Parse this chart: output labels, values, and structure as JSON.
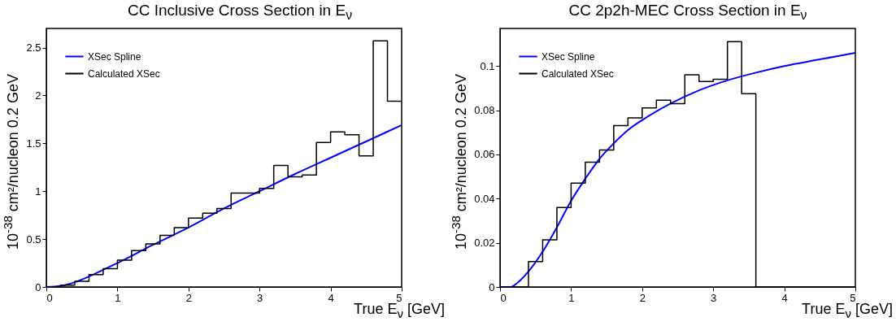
{
  "chart_data": [
    {
      "type": "histogram",
      "title": "CC Inclusive Cross Section in E$_{ν}$",
      "xlabel": "True E$_{ν}$ [GeV]",
      "ylabel": "10$^{-38}$ cm²/nucleon 0.2 GeV",
      "xlim": [
        0,
        5
      ],
      "xticks": [
        0,
        1,
        2,
        3,
        4,
        5
      ],
      "ylim": [
        0,
        2.7
      ],
      "yticks": [
        0,
        0.5,
        1,
        1.5,
        2,
        2.5
      ],
      "legend": "top left",
      "series": [
        {
          "name": "XSec Spline",
          "type": "line",
          "color": "#0000ff",
          "x": [
            0,
            0.2,
            0.4,
            0.6,
            0.8,
            1,
            1.5,
            2,
            2.5,
            3,
            3.5,
            4,
            4.5,
            5
          ],
          "values": [
            0,
            0.01,
            0.05,
            0.11,
            0.18,
            0.25,
            0.44,
            0.62,
            0.82,
            1.0,
            1.18,
            1.35,
            1.52,
            1.69
          ]
        },
        {
          "name": "Calculated XSec",
          "color": "#000000",
          "bins": [
            0,
            0.2,
            0.4,
            0.6,
            0.8,
            1,
            1.2,
            1.4,
            1.6,
            1.8,
            2,
            2.2,
            2.4,
            2.6,
            2.8,
            3,
            3.2,
            3.4,
            3.6,
            3.8,
            4,
            4.2,
            4.4,
            4.6,
            4.8,
            5
          ],
          "values": [
            0,
            0.02,
            0.06,
            0.13,
            0.19,
            0.28,
            0.38,
            0.45,
            0.54,
            0.62,
            0.72,
            0.77,
            0.82,
            0.98,
            0.98,
            1.03,
            1.27,
            1.15,
            1.17,
            1.51,
            1.62,
            1.59,
            1.37,
            2.57,
            1.94
          ]
        }
      ]
    },
    {
      "type": "histogram",
      "title": "CC 2p2h-MEC Cross Section in E$_{ν}$",
      "xlabel": "True E$_{ν}$ [GeV]",
      "ylabel": "10$^{-38}$ cm²/nucleon 0.2 GeV",
      "xlim": [
        0,
        5
      ],
      "xticks": [
        0,
        1,
        2,
        3,
        4,
        5
      ],
      "ylim": [
        0,
        0.117
      ],
      "yticks": [
        0,
        0.02,
        0.04,
        0.06,
        0.08,
        0.1
      ],
      "legend": "top left",
      "series": [
        {
          "name": "XSec Spline",
          "type": "line",
          "color": "#0000ff",
          "x": [
            0,
            0.15,
            0.25,
            0.4,
            0.6,
            0.8,
            1,
            1.2,
            1.4,
            1.6,
            1.8,
            2,
            2.4,
            2.8,
            3.2,
            3.6,
            4,
            4.5,
            5
          ],
          "values": [
            0,
            0,
            0.002,
            0.007,
            0.016,
            0.027,
            0.039,
            0.049,
            0.058,
            0.065,
            0.071,
            0.0755,
            0.083,
            0.089,
            0.0935,
            0.097,
            0.1,
            0.103,
            0.106
          ]
        },
        {
          "name": "Calculated XSec",
          "color": "#000000",
          "bins": [
            0,
            0.2,
            0.4,
            0.6,
            0.8,
            1,
            1.2,
            1.4,
            1.6,
            1.8,
            2,
            2.2,
            2.4,
            2.6,
            2.8,
            3,
            3.2,
            3.4,
            3.6,
            3.8,
            4,
            4.2,
            4.4,
            4.6,
            4.8,
            5
          ],
          "values": [
            0,
            0,
            0.0115,
            0.0213,
            0.036,
            0.047,
            0.0565,
            0.062,
            0.073,
            0.0765,
            0.081,
            0.0845,
            0.083,
            0.096,
            0.093,
            0.094,
            0.111,
            0.0875,
            0,
            0,
            0,
            0,
            0,
            0,
            0
          ]
        }
      ]
    }
  ]
}
